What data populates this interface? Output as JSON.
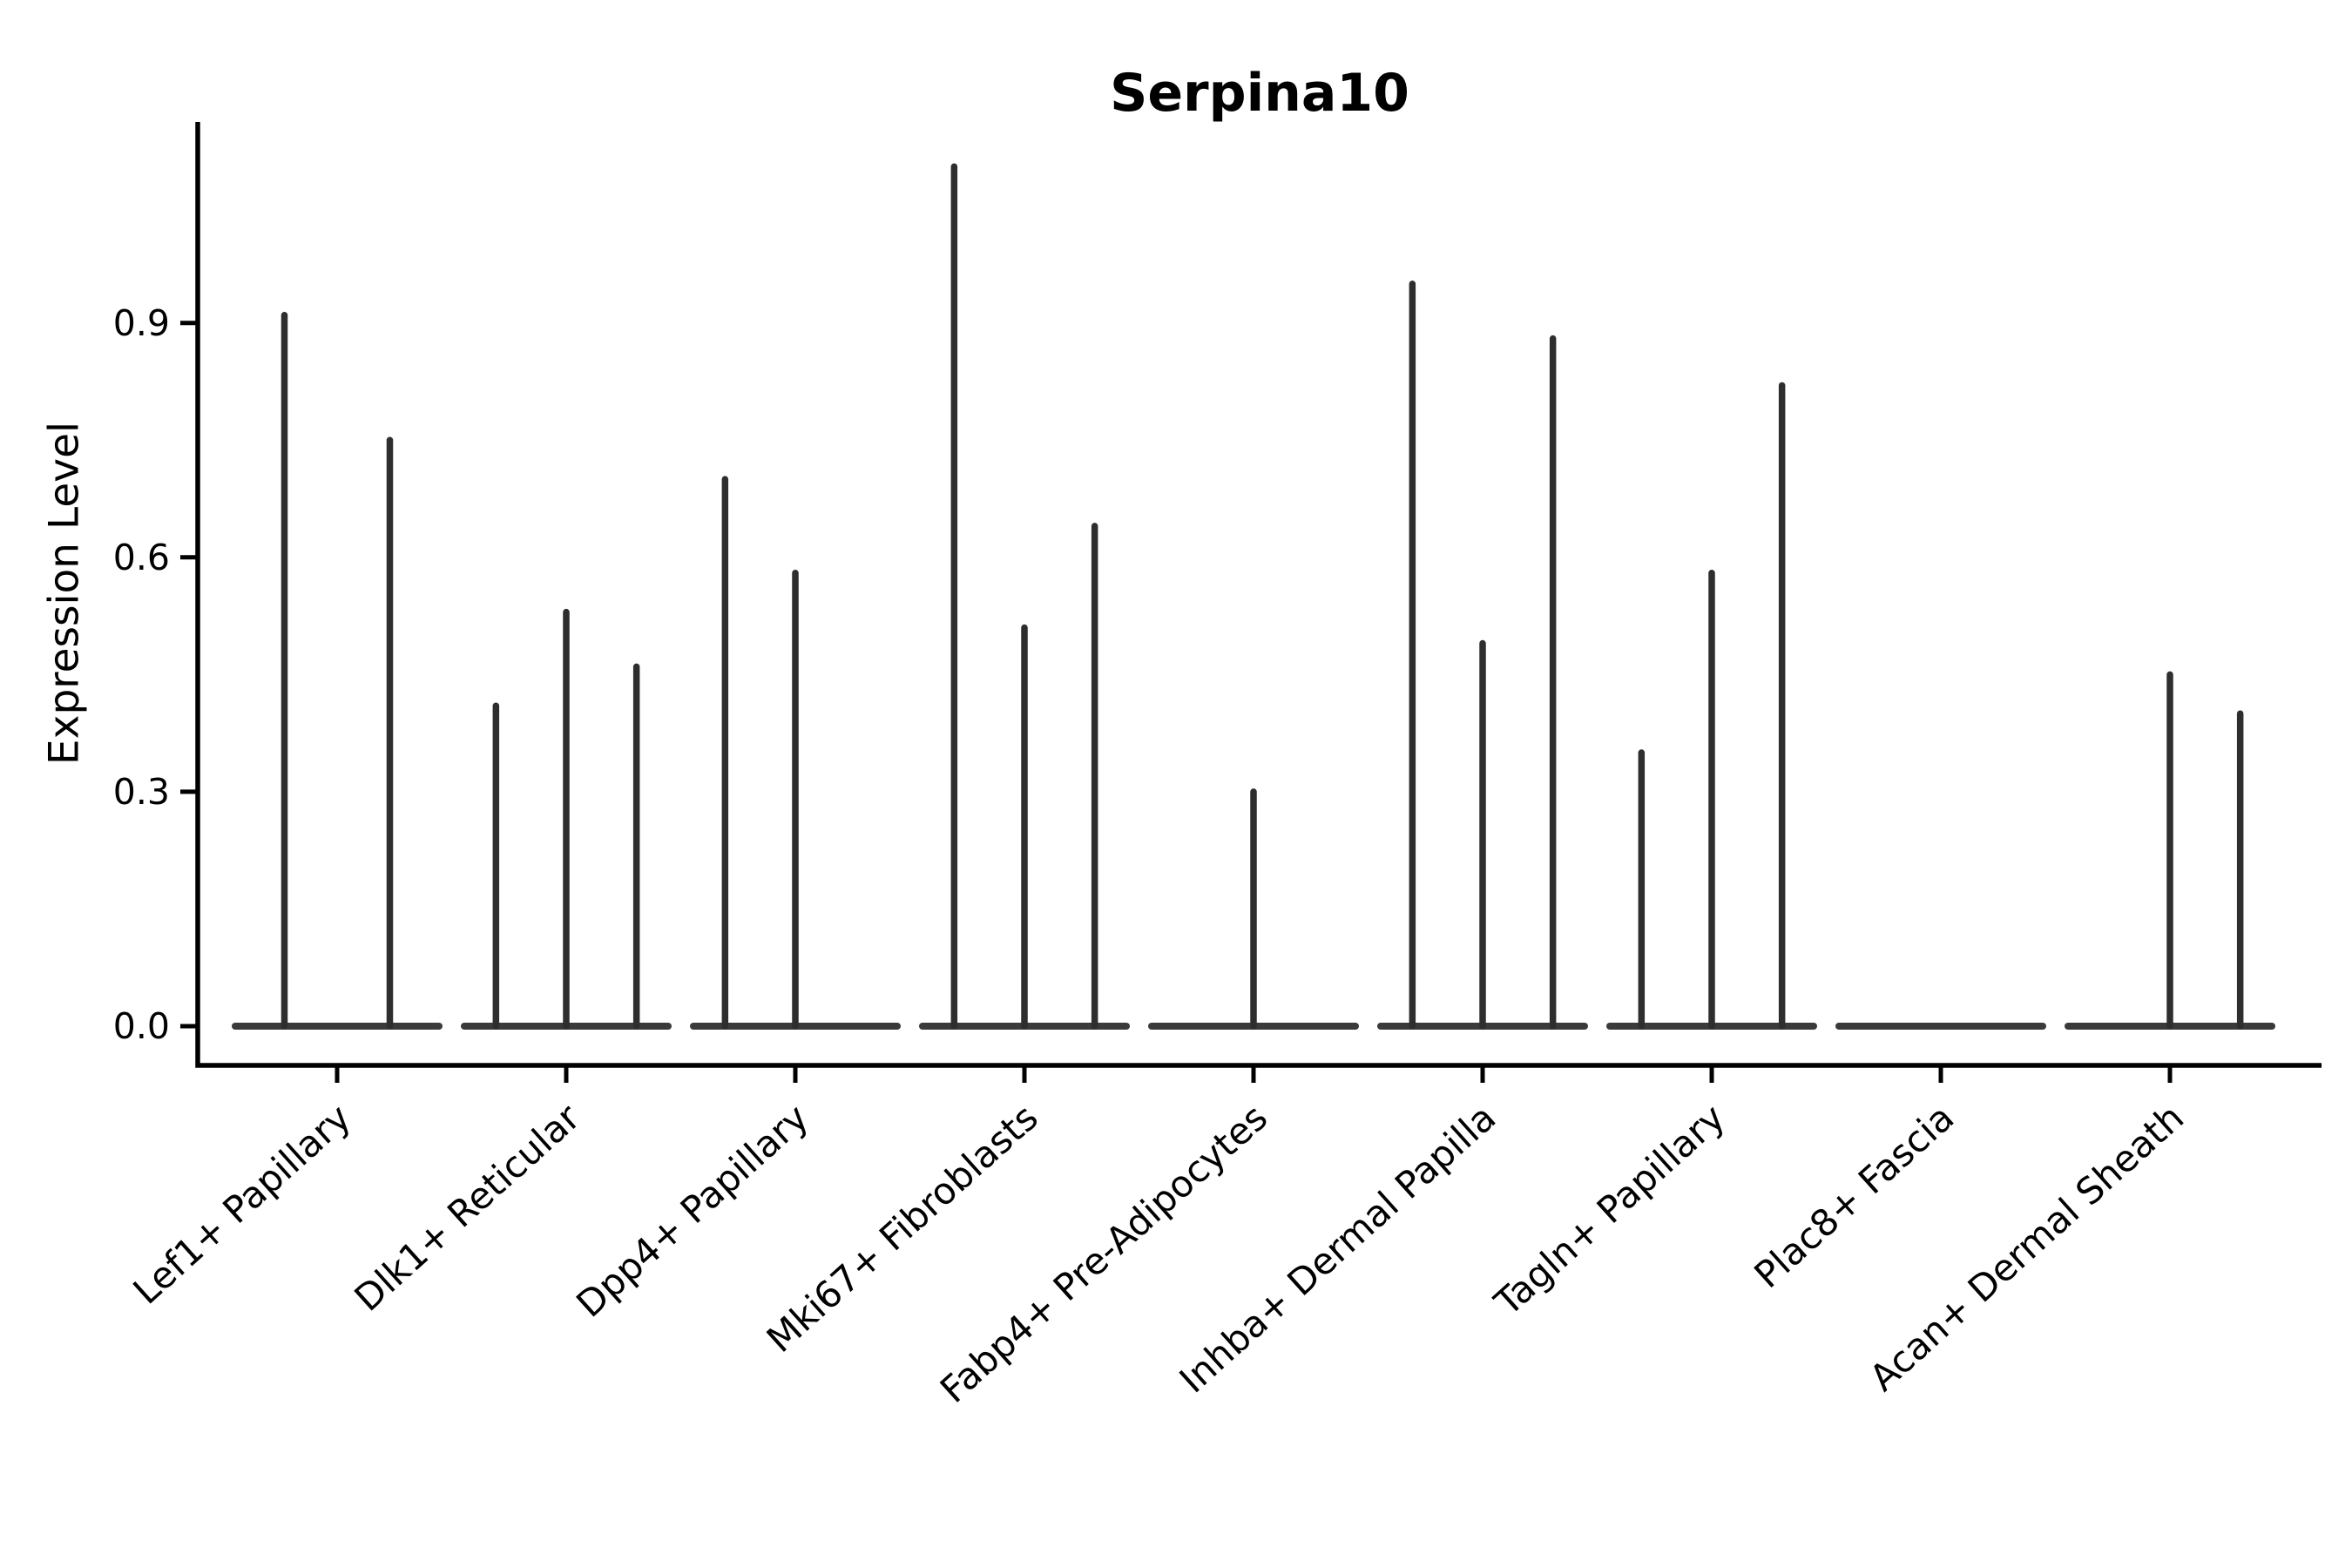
{
  "title": "Serpina10",
  "axes": {
    "ylabel": "Expression Level",
    "ytick_labels": [
      "0.0",
      "0.3",
      "0.6",
      "0.9"
    ]
  },
  "style": {
    "background": "#ffffff",
    "spine_color": "#000000",
    "violin_color": "#2e2e2e",
    "baseline_color": "#3a3a3a"
  },
  "chart_data": {
    "type": "violin",
    "title": "Serpina10",
    "xlabel": "",
    "ylabel": "Expression Level",
    "ylim": [
      -0.05,
      1.16
    ],
    "yticks": [
      0,
      0.3,
      0.6,
      0.9
    ],
    "ytick_labels": [
      "0.0",
      "0.3",
      "0.6",
      "0.9"
    ],
    "grid": false,
    "legend": "none",
    "description": "Violin plot of Serpina10 expression; each category shows 2-3 violins collapsed to a flat base at 0 with thin spikes reaching the listed maximum expression values (0 = flat violin with no spike).",
    "categories": [
      {
        "label": "Lef1+ Papillary",
        "violin_peaks": [
          0.91,
          0.75
        ]
      },
      {
        "label": "Dlk1+ Reticular",
        "violin_peaks": [
          0.41,
          0.53,
          0.46
        ]
      },
      {
        "label": "Dpp4+ Papillary",
        "violin_peaks": [
          0.7,
          0.58,
          0
        ]
      },
      {
        "label": "Mki67+ Fibroblasts",
        "violin_peaks": [
          1.1,
          0.51,
          0.64
        ]
      },
      {
        "label": "Fabp4+ Pre-Adipocytes",
        "violin_peaks": [
          0,
          0.3,
          0
        ]
      },
      {
        "label": "Inhba+ Dermal Papilla",
        "violin_peaks": [
          0.95,
          0.49,
          0.88
        ]
      },
      {
        "label": "Tagln+ Papillary",
        "violin_peaks": [
          0.35,
          0.58,
          0.82
        ]
      },
      {
        "label": "Plac8+ Fascia",
        "violin_peaks": [
          0,
          0,
          0
        ]
      },
      {
        "label": "Acan+ Dermal Sheath",
        "violin_peaks": [
          0,
          0.45,
          0.4
        ]
      }
    ]
  }
}
